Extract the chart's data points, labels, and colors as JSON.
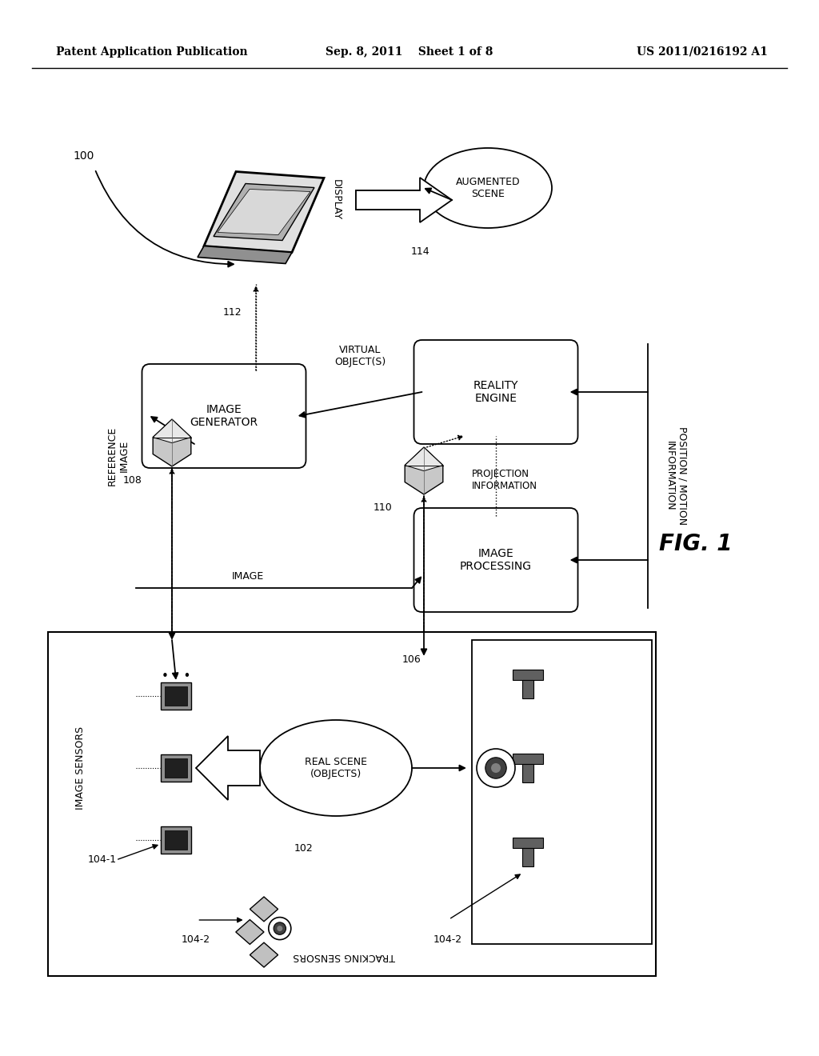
{
  "title_left": "Patent Application Publication",
  "title_center": "Sep. 8, 2011    Sheet 1 of 8",
  "title_right": "US 2011/0216192 A1",
  "fig_label": "FIG. 1",
  "bg_color": "#ffffff"
}
